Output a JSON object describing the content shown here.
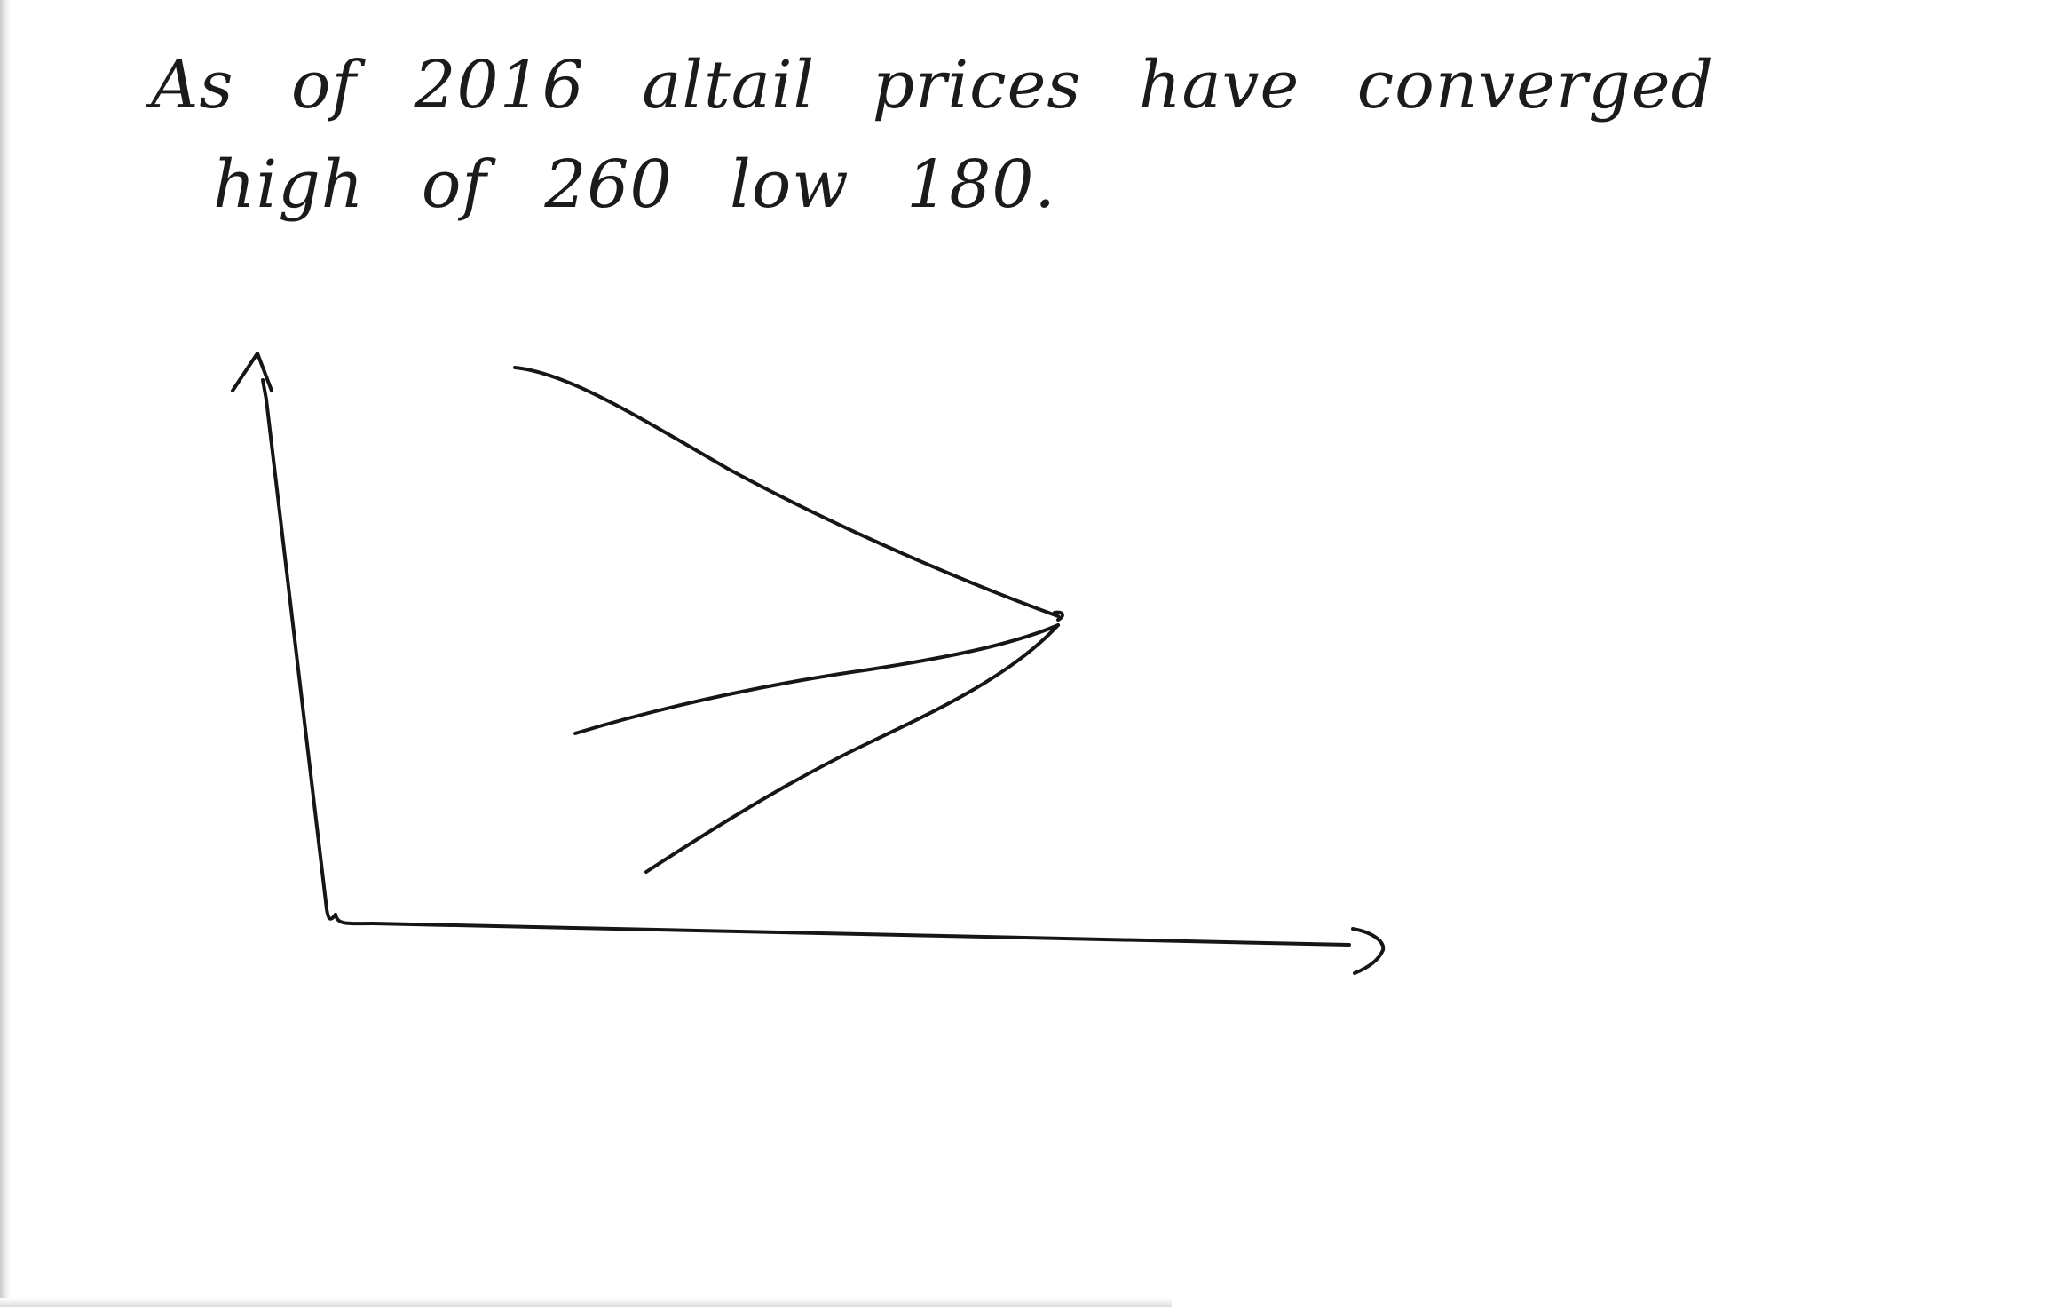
{
  "note": {
    "line_1": "As of 2016 altail prices have converged",
    "line_2": "high of 260 low 180."
  },
  "sketch": {
    "ink_color": "#161616",
    "paper_color": "#ffffff"
  }
}
